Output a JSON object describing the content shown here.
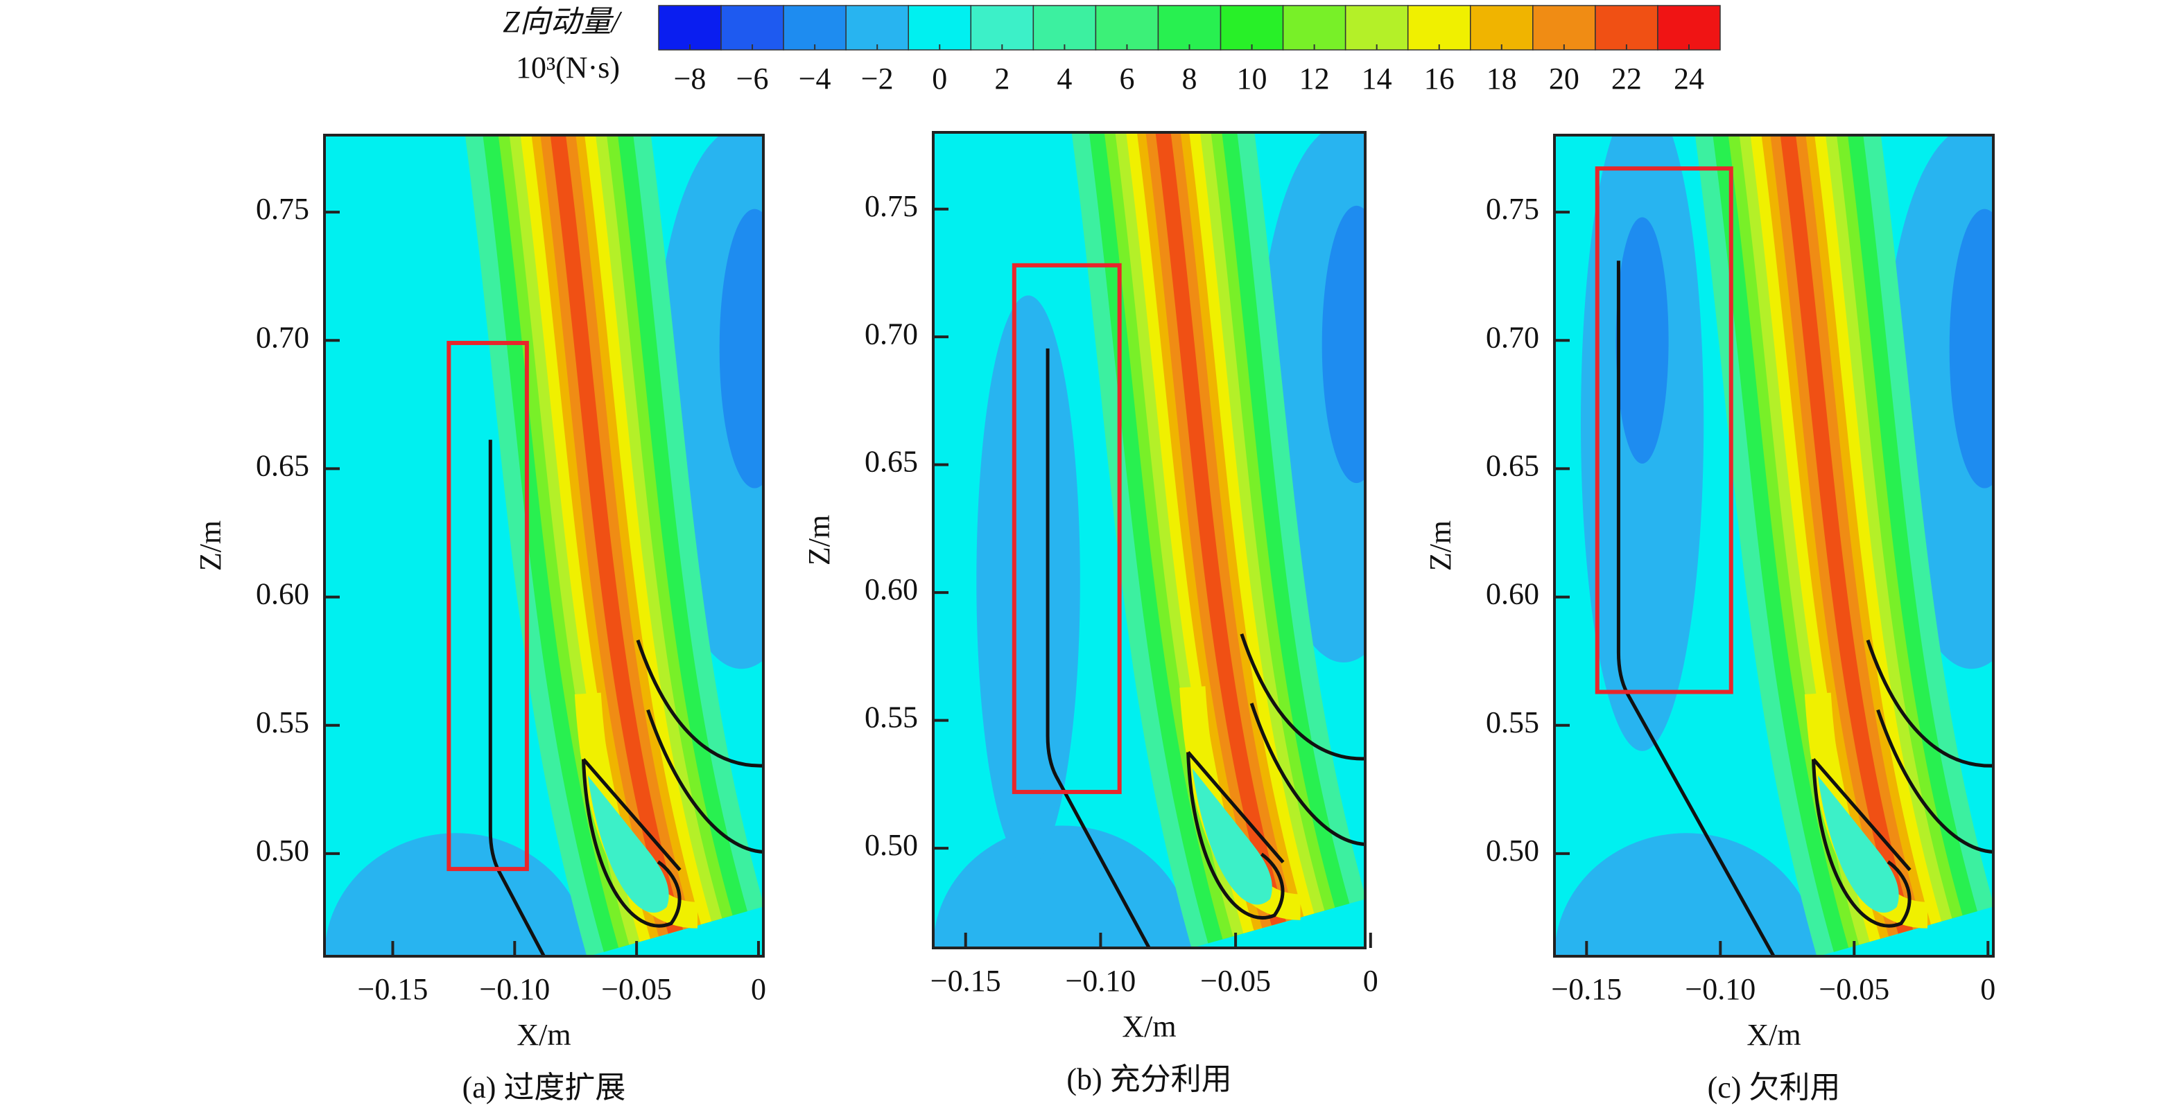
{
  "colorbar": {
    "title": [
      "Z向动量/",
      "10³(N·s)"
    ],
    "levels": [
      -9,
      -7,
      -5,
      -3,
      -1,
      1,
      3,
      5,
      7,
      9,
      11,
      13,
      15,
      17,
      19,
      21,
      23,
      25
    ],
    "colors": [
      "#0a1ef0",
      "#1e5af0",
      "#1e8cf0",
      "#28b4f0",
      "#00f0f0",
      "#3cf0c8",
      "#3cf0a0",
      "#3cf078",
      "#28f050",
      "#28f028",
      "#78f028",
      "#b4f028",
      "#f0f000",
      "#f0b400",
      "#f08c14",
      "#f05014",
      "#f01414"
    ],
    "ticks": [
      {
        "value": -8,
        "label": "−8"
      },
      {
        "value": -6,
        "label": "−6"
      },
      {
        "value": -4,
        "label": "−4"
      },
      {
        "value": -2,
        "label": "−2"
      },
      0,
      2,
      4,
      6,
      8,
      10,
      12,
      14,
      16,
      18,
      20,
      22,
      24
    ]
  },
  "chart_data": [
    {
      "type": "contour",
      "title": "(a) 过度扩展",
      "x_label": "X/m",
      "y_label": "Z/m",
      "xlim": [
        -0.178,
        0.002
      ],
      "ylim": [
        0.46,
        0.78
      ],
      "xticks": [
        {
          "value": -0.15,
          "label": "−0.15"
        },
        {
          "value": -0.1,
          "label": "−0.10"
        },
        {
          "value": -0.05,
          "label": "−0.05"
        },
        0
      ],
      "yticks": [
        0.75,
        {
          "value": 0.7,
          "label": "0.70"
        },
        0.65,
        {
          "value": 0.6,
          "label": "0.60"
        },
        0.55,
        {
          "value": 0.5,
          "label": "0.50"
        }
      ],
      "highlight_box": {
        "xlim": [
          -0.127,
          -0.095
        ],
        "ylim": [
          0.494,
          0.699
        ],
        "color": "#e8262b"
      }
    },
    {
      "type": "contour",
      "title": "(b) 充分利用",
      "x_label": "X/m",
      "y_label": "Z/m",
      "xlim": [
        -0.162,
        -0.002
      ],
      "ylim": [
        0.461,
        0.78
      ],
      "xticks": [
        {
          "value": -0.15,
          "label": "−0.15"
        },
        {
          "value": -0.1,
          "label": "−0.10"
        },
        {
          "value": -0.05,
          "label": "−0.05"
        },
        0
      ],
      "yticks": [
        0.75,
        {
          "value": 0.7,
          "label": "0.70"
        },
        0.65,
        {
          "value": 0.6,
          "label": "0.60"
        },
        0.55,
        {
          "value": 0.5,
          "label": "0.50"
        }
      ],
      "highlight_box": {
        "xlim": [
          -0.132,
          -0.093
        ],
        "ylim": [
          0.522,
          0.728
        ],
        "color": "#e8262b"
      }
    },
    {
      "type": "contour",
      "title": "(c) 欠利用",
      "x_label": "X/m",
      "y_label": "Z/m",
      "xlim": [
        -0.162,
        0.002
      ],
      "ylim": [
        0.46,
        0.78
      ],
      "xticks": [
        {
          "value": -0.15,
          "label": "−0.15"
        },
        {
          "value": -0.1,
          "label": "−0.10"
        },
        {
          "value": -0.05,
          "label": "−0.05"
        },
        0
      ],
      "yticks": [
        0.75,
        {
          "value": 0.7,
          "label": "0.70"
        },
        0.65,
        {
          "value": 0.6,
          "label": "0.60"
        },
        0.55,
        {
          "value": 0.5,
          "label": "0.50"
        }
      ],
      "highlight_box": {
        "xlim": [
          -0.146,
          -0.096
        ],
        "ylim": [
          0.563,
          0.767
        ],
        "color": "#e8262b"
      }
    }
  ]
}
